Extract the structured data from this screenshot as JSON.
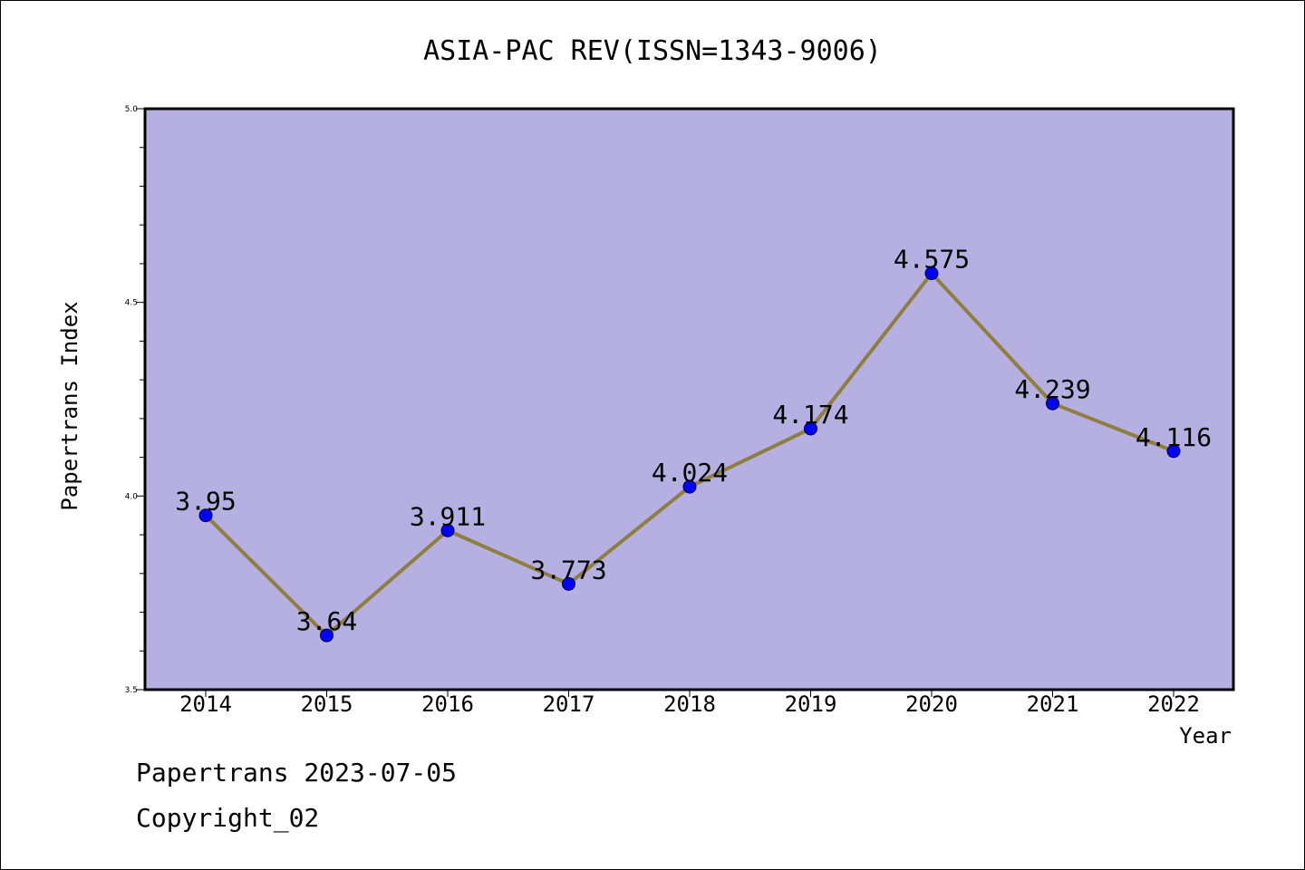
{
  "chart_data": {
    "type": "line",
    "title": "ASIA-PAC REV(ISSN=1343-9006)",
    "xlabel": "Year",
    "ylabel": "Papertrans Index",
    "x": [
      "2014",
      "2015",
      "2016",
      "2017",
      "2018",
      "2019",
      "2020",
      "2021",
      "2022"
    ],
    "values": [
      3.95,
      3.64,
      3.911,
      3.773,
      4.024,
      4.174,
      4.575,
      4.239,
      4.116
    ],
    "data_labels": [
      "3.95",
      "3.64",
      "3.911",
      "3.773",
      "4.024",
      "4.174",
      "4.575",
      "4.239",
      "4.116"
    ],
    "ylim": [
      3.5,
      5.0
    ],
    "y_ticks": [
      "3.5",
      "4.0",
      "4.5",
      "5.0"
    ],
    "grid": false,
    "colors": {
      "plot_background": "#b5afe2",
      "line": "#8f7f3f",
      "marker": "#0000ff"
    }
  },
  "footer": {
    "line1": "Papertrans 2023-07-05",
    "line2": "Copyright_02"
  }
}
